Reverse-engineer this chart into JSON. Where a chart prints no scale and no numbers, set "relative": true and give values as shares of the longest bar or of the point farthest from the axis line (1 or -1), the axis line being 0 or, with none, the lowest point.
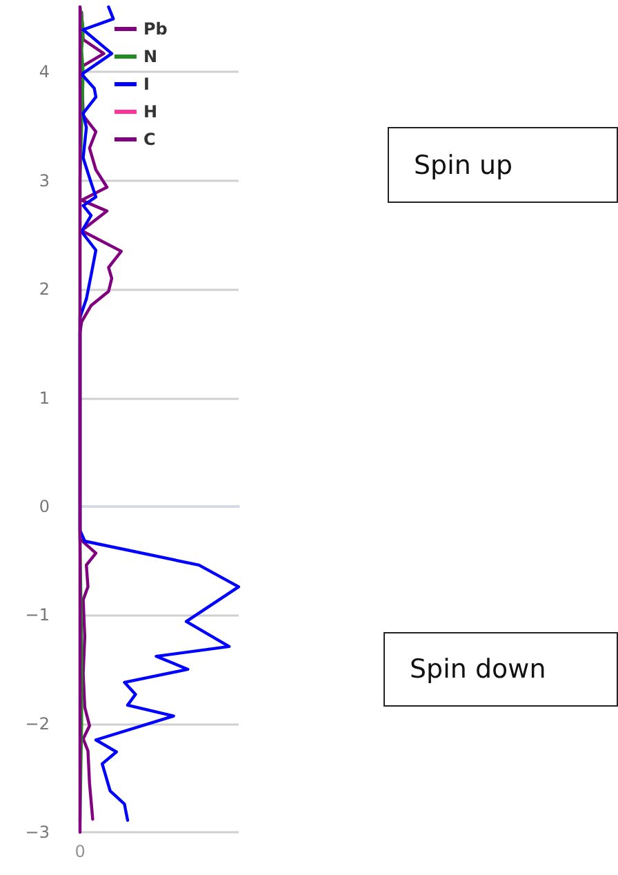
{
  "chart_data": {
    "type": "line",
    "orientation": "horizontal",
    "relative": true,
    "ylim": [
      -3,
      4.6
    ],
    "yticks": [
      -3,
      -2,
      -1,
      0,
      1,
      2,
      3,
      4
    ],
    "grid": "y",
    "legend": "top left",
    "marker": "none",
    "line_style": "solid",
    "annotations": [
      "Spin up",
      "Spin down",
      {
        "text": "0",
        "x": 0,
        "y": -3
      }
    ],
    "series": [
      {
        "name": "Pb",
        "color": "#800080",
        "values": [
          0.01,
          0.02,
          0.15,
          0.01,
          0.02,
          0.1,
          0.06,
          0.1,
          0.17,
          0.01,
          0.17,
          0.01,
          0.26,
          0.18,
          0.2,
          0.18,
          0.07,
          0.01,
          0,
          0,
          0,
          0.1,
          0.04,
          0.05,
          0.02,
          0.03,
          0.02,
          0.03,
          0.06,
          0.02,
          0.05,
          0.06,
          0.08
        ],
        "x": [
          4.55,
          4.3,
          4.17,
          4.05,
          3.6,
          3.45,
          3.3,
          3.1,
          2.94,
          2.82,
          2.72,
          2.54,
          2.35,
          2.2,
          2.1,
          1.98,
          1.85,
          1.7,
          1.6,
          0,
          -0.3,
          -0.43,
          -0.54,
          -0.74,
          -0.86,
          -1.2,
          -1.54,
          -1.85,
          -2.02,
          -2.14,
          -2.25,
          -2.55,
          -2.88
        ]
      },
      {
        "name": "N",
        "color": "#228b22",
        "values": [
          0,
          0.02,
          0.01,
          0.02,
          0,
          0,
          0,
          0.01,
          0.01,
          0
        ],
        "x": [
          4.6,
          4.4,
          4.2,
          4.0,
          3.0,
          1.7,
          -0.3,
          -1.3,
          -2.0,
          -2.9
        ]
      },
      {
        "name": "I",
        "color": "#0000ff",
        "values": [
          0.18,
          0.21,
          0.02,
          0.2,
          0.01,
          0.09,
          0.1,
          0.02,
          0.04,
          0.02,
          0.07,
          0.1,
          0.02,
          0.07,
          0.01,
          0.1,
          0.07,
          0.04,
          0,
          0,
          0.03,
          0.75,
          1,
          0.67,
          0.94,
          0.48,
          0.68,
          0.28,
          0.35,
          0.3,
          0.59,
          0.1,
          0.23,
          0.14,
          0.19,
          0.28,
          0.3
        ],
        "x": [
          4.6,
          4.49,
          4.39,
          4.17,
          3.98,
          3.85,
          3.77,
          3.62,
          3.49,
          3.21,
          2.98,
          2.85,
          2.77,
          2.68,
          2.53,
          2.36,
          2.13,
          1.91,
          1.74,
          -0.22,
          -0.32,
          -0.54,
          -0.74,
          -1.06,
          -1.29,
          -1.38,
          -1.5,
          -1.62,
          -1.73,
          -1.83,
          -1.93,
          -2.15,
          -2.26,
          -2.37,
          -2.62,
          -2.74,
          -2.89
        ]
      },
      {
        "name": "H",
        "color": "#ff3399"
      },
      {
        "name": "C",
        "color": "#800080",
        "values": [
          0,
          0
        ],
        "x": [
          -3,
          4.6
        ]
      }
    ]
  }
}
